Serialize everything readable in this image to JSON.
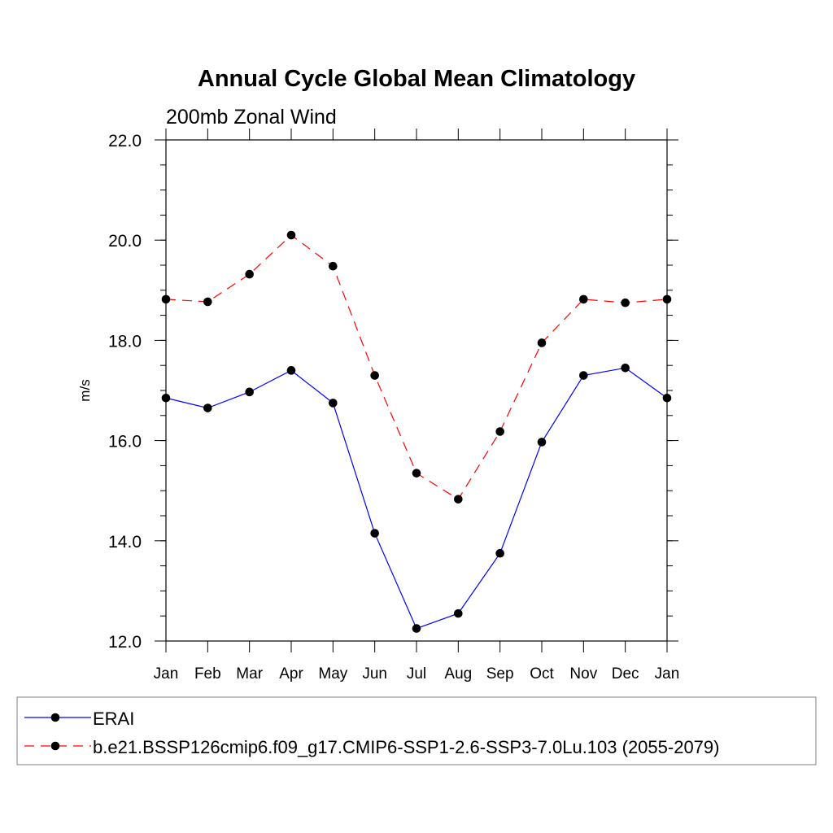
{
  "chart_data": {
    "type": "line",
    "title": "Annual Cycle Global Mean Climatology",
    "subtitle": "200mb Zonal Wind",
    "xlabel": "",
    "ylabel": "m/s",
    "categories": [
      "Jan",
      "Feb",
      "Mar",
      "Apr",
      "May",
      "Jun",
      "Jul",
      "Aug",
      "Sep",
      "Oct",
      "Nov",
      "Dec",
      "Jan"
    ],
    "ylim": [
      12.0,
      22.0
    ],
    "yticks": [
      "12.0",
      "14.0",
      "16.0",
      "18.0",
      "20.0",
      "22.0"
    ],
    "grid": false,
    "legend_position": "bottom",
    "series": [
      {
        "name": "ERAI",
        "color": "#0000ff",
        "dash": "solid",
        "values": [
          16.85,
          16.65,
          16.97,
          17.4,
          16.75,
          14.15,
          12.25,
          12.55,
          13.75,
          15.97,
          17.3,
          17.45,
          16.85
        ]
      },
      {
        "name": "b.e21.BSSP126cmip6.f09_g17.CMIP6-SSP1-2.6-SSP3-7.0Lu.103 (2055-2079)",
        "color": "#ff0000",
        "dash": "dashed",
        "values": [
          18.82,
          18.77,
          19.32,
          20.1,
          19.48,
          17.3,
          15.35,
          14.83,
          16.18,
          17.95,
          18.82,
          18.75,
          18.82
        ]
      }
    ]
  }
}
